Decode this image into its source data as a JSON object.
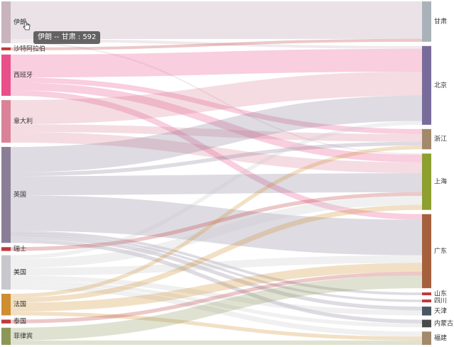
{
  "chart_data": {
    "type": "sankey",
    "title": "",
    "sources": [
      {
        "name": "伊朗",
        "color": "#c9b3bd"
      },
      {
        "name": "沙特阿拉伯",
        "color": "#c0383b"
      },
      {
        "name": "西班牙",
        "color": "#e94f88"
      },
      {
        "name": "意大利",
        "color": "#d98298"
      },
      {
        "name": "英国",
        "color": "#8a7e97"
      },
      {
        "name": "瑞士",
        "color": "#c0383b"
      },
      {
        "name": "美国",
        "color": "#c8c8cc"
      },
      {
        "name": "法国",
        "color": "#cf8e30"
      },
      {
        "name": "泰国",
        "color": "#c0383b"
      },
      {
        "name": "菲律宾",
        "color": "#8d9657"
      }
    ],
    "targets": [
      {
        "name": "甘肃",
        "color": "#aab2b9"
      },
      {
        "name": "北京",
        "color": "#786c9b"
      },
      {
        "name": "浙江",
        "color": "#a3896b"
      },
      {
        "name": "上海",
        "color": "#8d9f2f"
      },
      {
        "name": "广东",
        "color": "#a5613d"
      },
      {
        "name": "山东",
        "color": "#c0383b"
      },
      {
        "name": "四川",
        "color": "#c0383b"
      },
      {
        "name": "天津",
        "color": "#4a5663"
      },
      {
        "name": "内蒙古",
        "color": "#4a4a4a"
      },
      {
        "name": "福建",
        "color": "#a3896b"
      }
    ],
    "links": [
      {
        "source": "伊朗",
        "target": "甘肃",
        "value": 592
      },
      {
        "source": "伊朗",
        "target": "北京",
        "value": 45
      },
      {
        "source": "伊朗",
        "target": "上海",
        "value": 20
      },
      {
        "source": "沙特阿拉伯",
        "target": "甘肃",
        "value": 45
      },
      {
        "source": "西班牙",
        "target": "北京",
        "value": 360
      },
      {
        "source": "西班牙",
        "target": "浙江",
        "value": 80
      },
      {
        "source": "西班牙",
        "target": "上海",
        "value": 120
      },
      {
        "source": "西班牙",
        "target": "广东",
        "value": 90
      },
      {
        "source": "意大利",
        "target": "北京",
        "value": 380
      },
      {
        "source": "意大利",
        "target": "浙江",
        "value": 120
      },
      {
        "source": "意大利",
        "target": "上海",
        "value": 170
      },
      {
        "source": "英国",
        "target": "北京",
        "value": 400
      },
      {
        "source": "英国",
        "target": "浙江",
        "value": 60
      },
      {
        "source": "英国",
        "target": "上海",
        "value": 300
      },
      {
        "source": "英国",
        "target": "广东",
        "value": 560
      },
      {
        "source": "英国",
        "target": "山东",
        "value": 40
      },
      {
        "source": "英国",
        "target": "四川",
        "value": 30
      },
      {
        "source": "英国",
        "target": "天津",
        "value": 60
      },
      {
        "source": "英国",
        "target": "内蒙古",
        "value": 60
      },
      {
        "source": "瑞士",
        "target": "上海",
        "value": 60
      },
      {
        "source": "美国",
        "target": "北京",
        "value": 60
      },
      {
        "source": "美国",
        "target": "上海",
        "value": 140
      },
      {
        "source": "美国",
        "target": "广东",
        "value": 120
      },
      {
        "source": "美国",
        "target": "天津",
        "value": 80
      },
      {
        "source": "美国",
        "target": "内蒙古",
        "value": 60
      },
      {
        "source": "美国",
        "target": "福建",
        "value": 80
      },
      {
        "source": "法国",
        "target": "浙江",
        "value": 60
      },
      {
        "source": "法国",
        "target": "上海",
        "value": 80
      },
      {
        "source": "法国",
        "target": "广东",
        "value": 140
      },
      {
        "source": "法国",
        "target": "福建",
        "value": 60
      },
      {
        "source": "泰国",
        "target": "广东",
        "value": 60
      },
      {
        "source": "菲律宾",
        "target": "广东",
        "value": 200
      },
      {
        "source": "菲律宾",
        "target": "福建",
        "value": 70
      }
    ],
    "legend": "none",
    "grid": false
  },
  "tooltip": {
    "source": "伊朗",
    "separator": " -- ",
    "target": "甘肃",
    "colon": " : ",
    "value": "592"
  }
}
